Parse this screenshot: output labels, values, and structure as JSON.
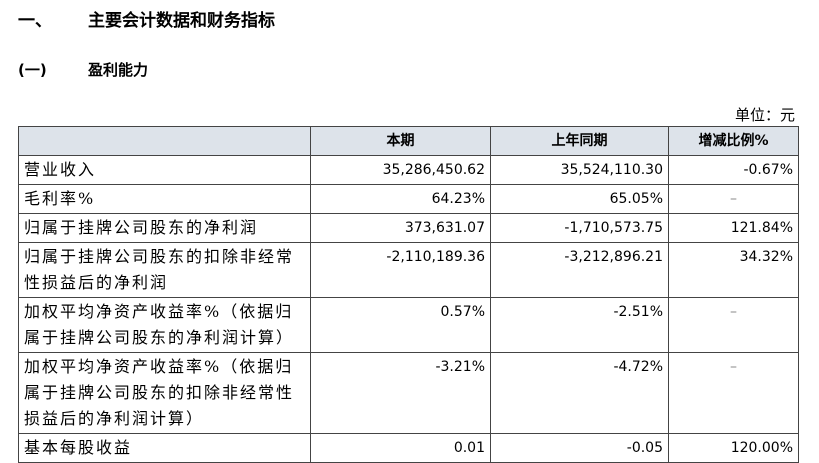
{
  "header": {
    "number": "一、",
    "title": "主要会计数据和财务指标"
  },
  "section": {
    "number": "(一)",
    "title": "盈利能力"
  },
  "unit": "单位：元",
  "table": {
    "columns": [
      "",
      "本期",
      "上年同期",
      "增减比例%"
    ],
    "rows": [
      [
        "营业收入",
        "35,286,450.62",
        "35,524,110.30",
        "-0.67%"
      ],
      [
        "毛利率%",
        "64.23%",
        "65.05%",
        "–"
      ],
      [
        "归属于挂牌公司股东的净利润",
        "373,631.07",
        "-1,710,573.75",
        "121.84%"
      ],
      [
        "归属于挂牌公司股东的扣除非经常性损益后的净利润",
        "-2,110,189.36",
        "-3,212,896.21",
        "34.32%"
      ],
      [
        "加权平均净资产收益率%（依据归属于挂牌公司股东的净利润计算）",
        "0.57%",
        "-2.51%",
        "–"
      ],
      [
        "加权平均净资产收益率%（依据归属于挂牌公司股东的扣除非经常性损益后的净利润计算）",
        "-3.21%",
        "-4.72%",
        "–"
      ],
      [
        "基本每股收益",
        "0.01",
        "-0.05",
        "120.00%"
      ]
    ]
  }
}
